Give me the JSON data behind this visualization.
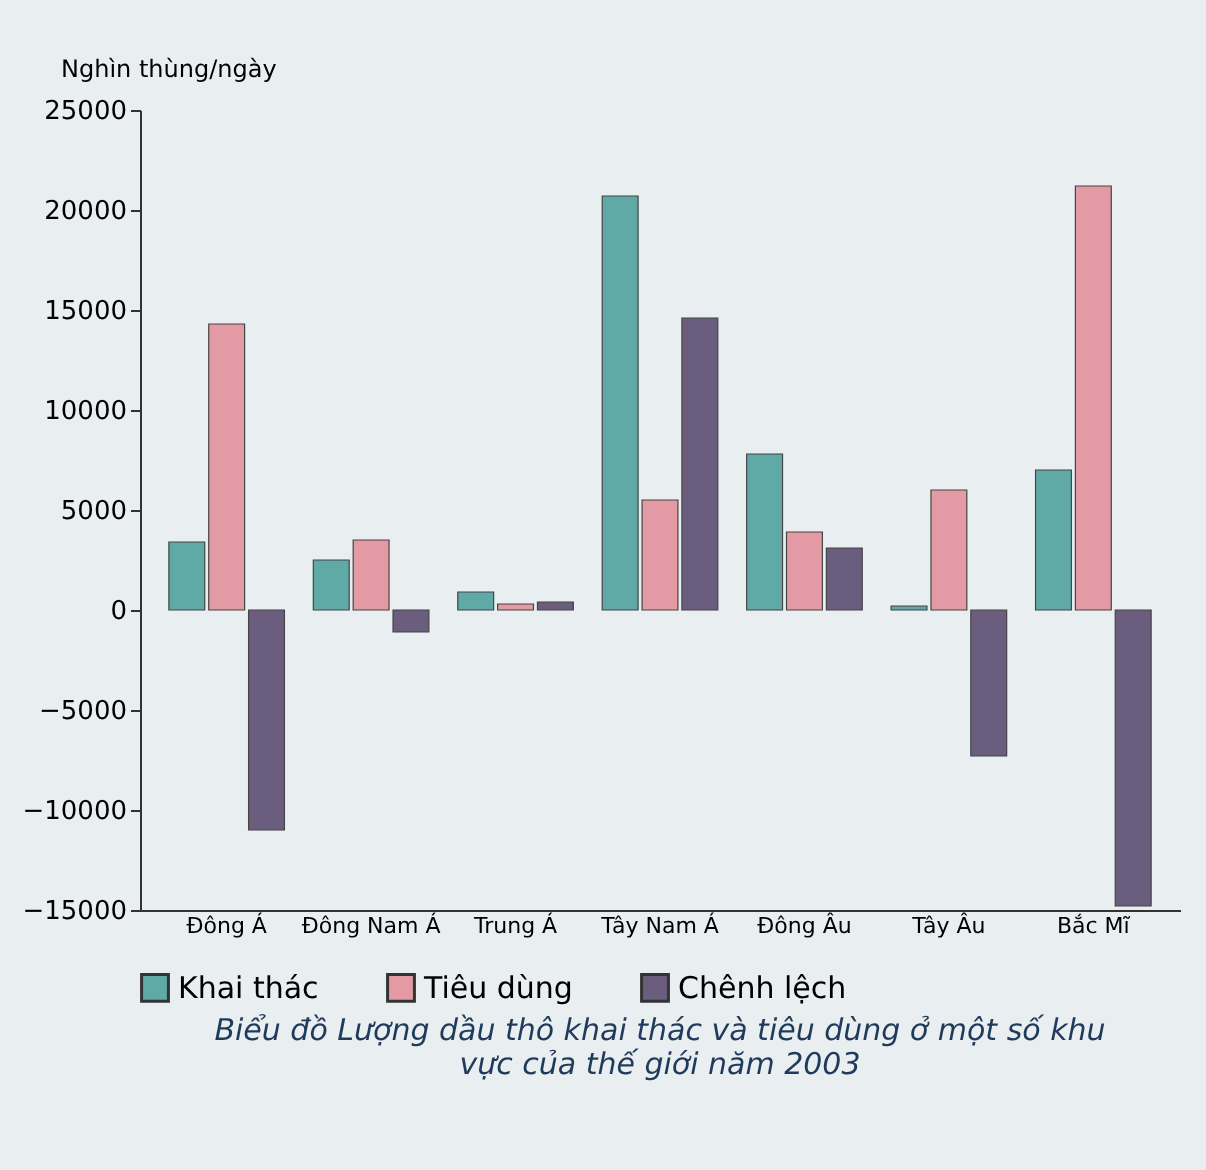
{
  "chart_data": {
    "type": "bar",
    "title": "Biểu đồ Lượng dầu thô khai thác và tiêu dùng ở một số khu vực của thế giới năm 2003",
    "ylabel": "Nghìn thùng/ngày",
    "categories": [
      "Đông Á",
      "Đông Nam Á",
      "Trung Á",
      "Tây Nam Á",
      "Đông Âu",
      "Tây Âu",
      "Bắc Mĩ"
    ],
    "series": [
      {
        "name": "Khai thác",
        "color": "#5fa9a6",
        "values": [
          3400,
          2500,
          900,
          20700,
          7800,
          200,
          7000
        ]
      },
      {
        "name": "Tiêu dùng",
        "color": "#e39aa4",
        "values": [
          14300,
          3500,
          300,
          5500,
          3900,
          6000,
          21200
        ]
      },
      {
        "name": "Chênh lệch",
        "color": "#6b5d7e",
        "values": [
          -11000,
          -1100,
          400,
          14600,
          3100,
          -7300,
          -14800
        ]
      }
    ],
    "ylim": [
      -15000,
      25000
    ],
    "yticks": [
      -15000,
      -10000,
      -5000,
      0,
      5000,
      10000,
      15000,
      20000,
      25000
    ],
    "grid": false,
    "legend": "bottom"
  }
}
